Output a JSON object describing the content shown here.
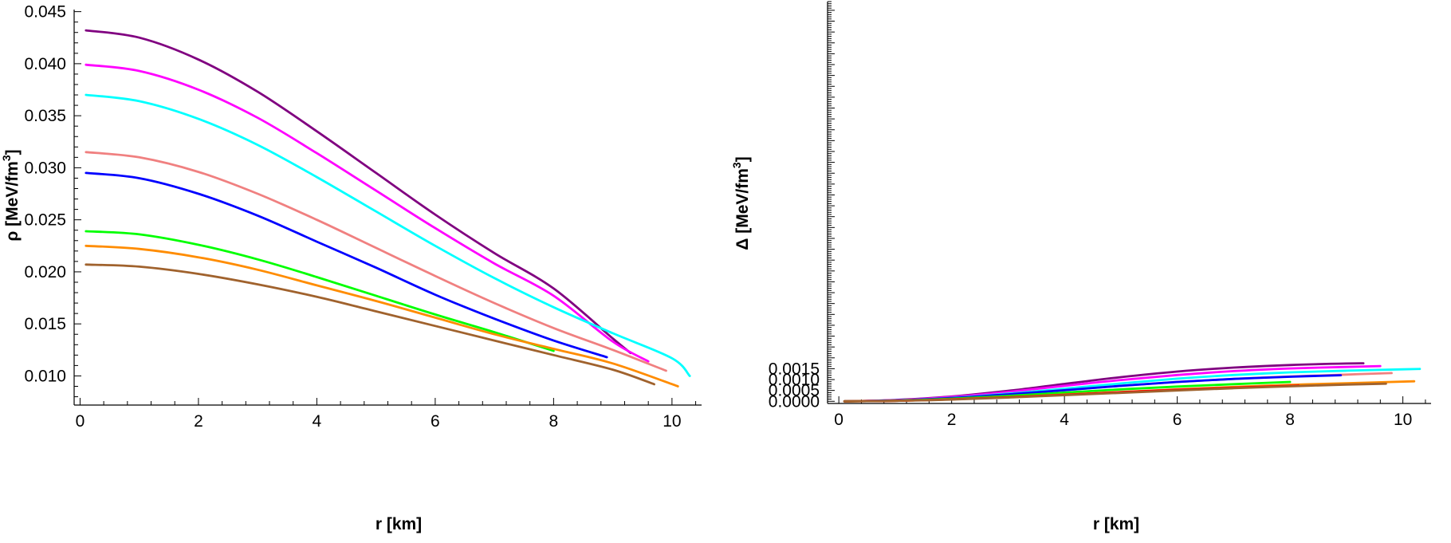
{
  "chart_data": [
    {
      "type": "line",
      "xlabel": "r [km]",
      "ylabel": {
        "main": "ρ [MeV/fm",
        "sup": "3",
        "end": "]"
      },
      "xlim": [
        -0.1,
        10.5
      ],
      "ylim": [
        0.0072,
        0.0452
      ],
      "xticks": [
        0,
        2,
        4,
        6,
        8,
        10
      ],
      "xtick_labels": [
        "0",
        "2",
        "4",
        "6",
        "8",
        "10"
      ],
      "yticks": [
        0.01,
        0.015,
        0.02,
        0.025,
        0.03,
        0.035,
        0.04,
        0.045
      ],
      "ytick_labels": [
        "0.010",
        "0.015",
        "0.020",
        "0.025",
        "0.030",
        "0.035",
        "0.040",
        "0.045"
      ],
      "grid": false,
      "legend": "none",
      "series": [
        {
          "color": "#800080",
          "x": [
            0.1,
            1,
            2,
            3,
            4,
            5,
            6,
            7,
            8,
            9,
            9.3
          ],
          "y": [
            0.0432,
            0.0425,
            0.0404,
            0.0373,
            0.0335,
            0.0295,
            0.0255,
            0.0218,
            0.0184,
            0.0136,
            0.0122
          ]
        },
        {
          "color": "#ff00ff",
          "x": [
            0.1,
            1,
            2,
            3,
            4,
            5,
            6,
            7,
            8,
            9,
            9.6
          ],
          "y": [
            0.0399,
            0.0393,
            0.0375,
            0.0348,
            0.0314,
            0.0278,
            0.0242,
            0.0208,
            0.0177,
            0.0133,
            0.0114
          ]
        },
        {
          "color": "#00ffff",
          "x": [
            0.1,
            1,
            2,
            3,
            4,
            5,
            6,
            7,
            8,
            9,
            10,
            10.3
          ],
          "y": [
            0.037,
            0.0364,
            0.0347,
            0.0322,
            0.0291,
            0.0258,
            0.0225,
            0.0194,
            0.0166,
            0.0141,
            0.0117,
            0.01
          ]
        },
        {
          "color": "#f08080",
          "x": [
            0.1,
            1,
            2,
            3,
            4,
            5,
            6,
            7,
            8,
            9,
            9.9
          ],
          "y": [
            0.0315,
            0.031,
            0.0296,
            0.0275,
            0.025,
            0.0223,
            0.0196,
            0.017,
            0.0146,
            0.0125,
            0.0105
          ]
        },
        {
          "color": "#0000ff",
          "x": [
            0.1,
            1,
            2,
            3,
            4,
            5,
            6,
            7,
            8,
            8.9
          ],
          "y": [
            0.0295,
            0.029,
            0.0275,
            0.0254,
            0.0229,
            0.0204,
            0.0178,
            0.0155,
            0.0134,
            0.0118
          ]
        },
        {
          "color": "#00ff00",
          "x": [
            0.1,
            1,
            2,
            3,
            4,
            5,
            6,
            7,
            8
          ],
          "y": [
            0.0239,
            0.0236,
            0.0226,
            0.0212,
            0.0195,
            0.0177,
            0.0159,
            0.0142,
            0.0124
          ]
        },
        {
          "color": "#ff8c00",
          "x": [
            0.1,
            1,
            2,
            3,
            4,
            5,
            6,
            7,
            8,
            9,
            10.1
          ],
          "y": [
            0.0225,
            0.0222,
            0.0214,
            0.0202,
            0.0187,
            0.0172,
            0.0156,
            0.014,
            0.0126,
            0.0112,
            0.009
          ]
        },
        {
          "color": "#a0622d",
          "x": [
            0.1,
            1,
            2,
            3,
            4,
            5,
            6,
            7,
            8,
            9,
            9.7
          ],
          "y": [
            0.0207,
            0.0205,
            0.0198,
            0.0188,
            0.0176,
            0.0162,
            0.0148,
            0.0134,
            0.012,
            0.0106,
            0.0092
          ]
        }
      ]
    },
    {
      "type": "line",
      "xlabel": "r [km]",
      "ylabel": {
        "main": "Δ [MeV/fm",
        "sup": "3",
        "end": "]"
      },
      "xlim": [
        -0.2,
        10.5
      ],
      "ylim": [
        -0.0001,
        0.0184
      ],
      "xticks": [
        0,
        2,
        4,
        6,
        8,
        10
      ],
      "xtick_labels": [
        "0",
        "2",
        "4",
        "6",
        "8",
        "10"
      ],
      "yticks": [
        0.0,
        0.0005,
        0.001,
        0.0015
      ],
      "ytick_labels": [
        "0.0000",
        "0.0005",
        "0.0010",
        "0.0015"
      ],
      "grid": false,
      "legend": "none",
      "series": [
        {
          "color": "#800080",
          "x": [
            0.1,
            1,
            2,
            3,
            4,
            5,
            6,
            7,
            8,
            9,
            9.3
          ],
          "y": [
            0.0,
            6e-05,
            0.00022,
            0.00048,
            0.0008,
            0.00111,
            0.00137,
            0.00155,
            0.00167,
            0.00174,
            0.00175
          ]
        },
        {
          "color": "#ff00ff",
          "x": [
            0.1,
            1,
            2,
            3,
            4,
            5,
            6,
            7,
            8,
            9,
            9.6
          ],
          "y": [
            0.0,
            5e-05,
            0.0002,
            0.00043,
            0.00071,
            0.00098,
            0.00121,
            0.00139,
            0.00151,
            0.00158,
            0.00162
          ]
        },
        {
          "color": "#00ffff",
          "x": [
            0.1,
            1,
            2,
            3,
            4,
            5,
            6,
            7,
            8,
            9,
            10,
            10.3
          ],
          "y": [
            0.0,
            4e-05,
            0.00016,
            0.00035,
            0.00058,
            0.00082,
            0.00104,
            0.00121,
            0.00133,
            0.00141,
            0.00147,
            0.00149
          ]
        },
        {
          "color": "#f08080",
          "x": [
            0.1,
            1,
            2,
            3,
            4,
            5,
            6,
            7,
            8,
            9,
            9.8
          ],
          "y": [
            0.0,
            4e-05,
            0.00015,
            0.00032,
            0.00051,
            0.00071,
            0.00089,
            0.00103,
            0.00114,
            0.00123,
            0.0013
          ]
        },
        {
          "color": "#0000ff",
          "x": [
            0.1,
            1,
            2,
            3,
            4,
            5,
            6,
            7,
            8,
            8.9
          ],
          "y": [
            0.0,
            4e-05,
            0.00015,
            0.00032,
            0.00051,
            0.00071,
            0.00089,
            0.00103,
            0.00113,
            0.0012
          ]
        },
        {
          "color": "#00ff00",
          "x": [
            0.1,
            1,
            2,
            3,
            4,
            5,
            6,
            7,
            8
          ],
          "y": [
            0.0,
            3e-05,
            0.00012,
            0.00025,
            0.0004,
            0.00055,
            0.00068,
            0.00079,
            0.00089
          ]
        },
        {
          "color": "#ff8c00",
          "x": [
            0.1,
            1,
            2,
            3,
            4,
            5,
            6,
            7,
            8,
            9,
            10.2
          ],
          "y": [
            0.0,
            2e-05,
            9e-05,
            0.00019,
            0.00031,
            0.00043,
            0.00055,
            0.00066,
            0.00076,
            0.00083,
            0.00092
          ]
        },
        {
          "color": "#ff0000",
          "x": [
            0.1,
            1,
            2,
            3,
            4,
            5,
            6,
            7,
            8,
            8.15
          ],
          "y": [
            0.0,
            2e-05,
            9e-05,
            0.00019,
            0.0003,
            0.00042,
            0.00053,
            0.00063,
            0.00071,
            0.00073
          ]
        },
        {
          "color": "#a0622d",
          "x": [
            0.1,
            1,
            2,
            3,
            4,
            5,
            6,
            7,
            8,
            9,
            9.7
          ],
          "y": [
            0.0,
            2e-05,
            8e-05,
            0.00017,
            0.00028,
            0.00039,
            0.0005,
            0.0006,
            0.00069,
            0.00077,
            0.00081
          ]
        }
      ]
    }
  ]
}
